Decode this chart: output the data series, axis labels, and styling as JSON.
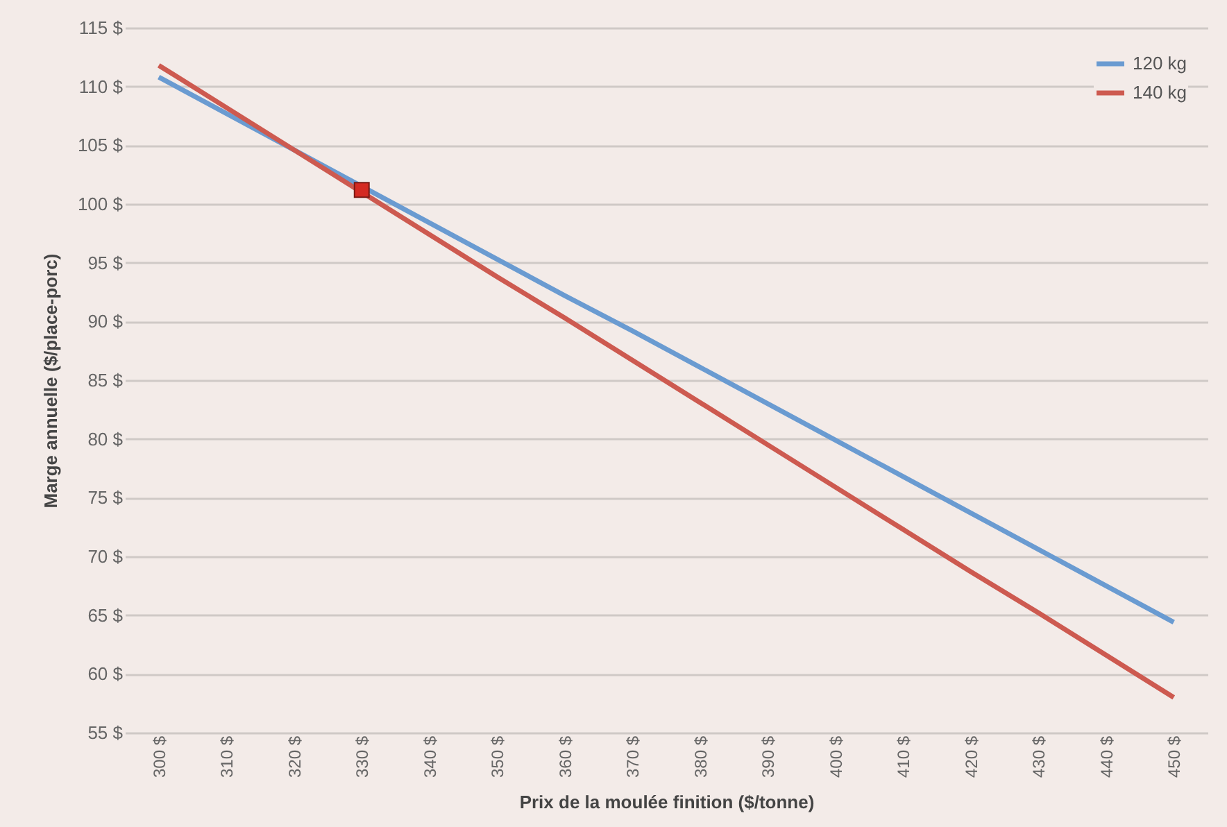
{
  "chart_data": {
    "type": "line",
    "xlabel": "Prix de la moulée finition ($/tonne)",
    "ylabel": "Marge annuelle ($/place-porc)",
    "categories": [
      "300 $",
      "310 $",
      "320 $",
      "330 $",
      "340 $",
      "350 $",
      "360 $",
      "370 $",
      "380 $",
      "390 $",
      "400 $",
      "410 $",
      "420 $",
      "430 $",
      "440 $",
      "450 $"
    ],
    "series": [
      {
        "name": "120 kg",
        "color": "#6a9bd1",
        "values": [
          110.8,
          107.7,
          104.6,
          101.5,
          98.4,
          95.3,
          92.2,
          89.2,
          86.1,
          83.0,
          79.9,
          76.8,
          73.7,
          70.6,
          67.5,
          64.4
        ]
      },
      {
        "name": "140 kg",
        "color": "#cd5a50",
        "values": [
          111.8,
          108.2,
          104.6,
          101.0,
          97.4,
          93.8,
          90.3,
          86.7,
          83.1,
          79.5,
          75.9,
          72.3,
          68.7,
          65.2,
          61.6,
          58.0
        ]
      },
      {
        "type": "scatter",
        "color": "#d42a22",
        "marker": "square",
        "x": [
          "330 $"
        ],
        "values": [
          101.2
        ]
      }
    ],
    "ylim": [
      55,
      115
    ],
    "yticks": [
      {
        "value": 55,
        "label": "55 $"
      },
      {
        "value": 60,
        "label": "60 $"
      },
      {
        "value": 65,
        "label": "65 $"
      },
      {
        "value": 70,
        "label": "70 $"
      },
      {
        "value": 75,
        "label": "75 $"
      },
      {
        "value": 80,
        "label": "80 $"
      },
      {
        "value": 85,
        "label": "85 $"
      },
      {
        "value": 90,
        "label": "90 $"
      },
      {
        "value": 95,
        "label": "95 $"
      },
      {
        "value": 100,
        "label": "100 $"
      },
      {
        "value": 105,
        "label": "105 $"
      },
      {
        "value": 110,
        "label": "110 $"
      },
      {
        "value": 115,
        "label": "115 $"
      }
    ],
    "grid": "y",
    "legend": "top right",
    "line_style": "solid"
  }
}
